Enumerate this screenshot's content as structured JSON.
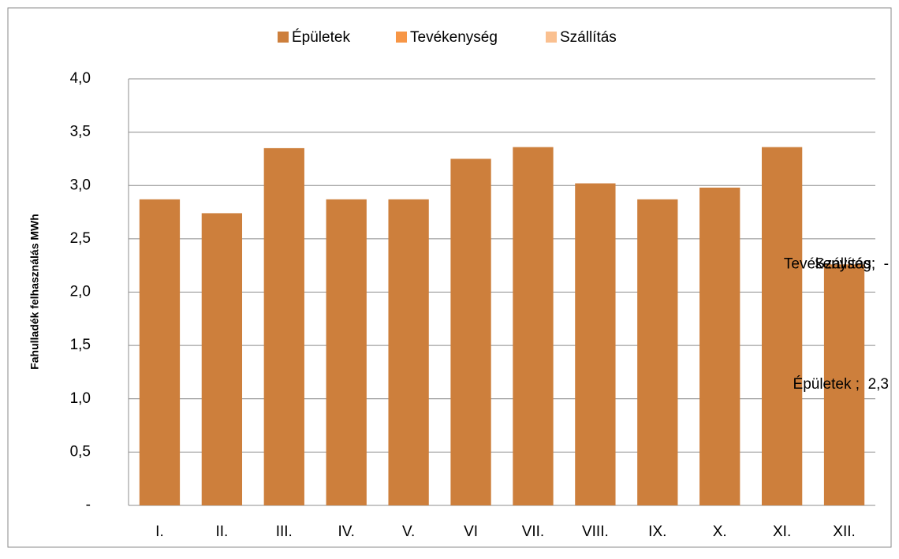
{
  "chart_data": {
    "type": "stacked_bar",
    "y_label": "Fahulladék felhasználás MWh",
    "categories": [
      "I.",
      "II.",
      "III.",
      "IV.",
      "V.",
      "VI",
      "VII.",
      "VIII.",
      "IX.",
      "X.",
      "XI.",
      "XII."
    ],
    "series": [
      {
        "name": "Épületek",
        "color": "#cd7f3c",
        "values": [
          2.87,
          2.74,
          3.35,
          2.87,
          2.87,
          3.25,
          3.36,
          3.02,
          2.87,
          2.98,
          3.36,
          2.26
        ],
        "value_labels": [
          null,
          null,
          null,
          null,
          null,
          null,
          null,
          null,
          null,
          null,
          null,
          "Épületek ;  2,3"
        ]
      },
      {
        "name": "Tevékenység",
        "color": "#f79646",
        "values": [
          0,
          0,
          0,
          0,
          0,
          0,
          0,
          0,
          0,
          0,
          0,
          0
        ],
        "value_labels": [
          null,
          null,
          null,
          null,
          null,
          null,
          null,
          null,
          null,
          null,
          null,
          "Tevékenység;  -"
        ]
      },
      {
        "name": "Szállítás",
        "color": "#fac090",
        "values": [
          0,
          0,
          0,
          0,
          0,
          0,
          0,
          0,
          0,
          0,
          0,
          0
        ],
        "value_labels": [
          null,
          null,
          null,
          null,
          null,
          null,
          null,
          null,
          null,
          null,
          null,
          "Szállítás;  -"
        ]
      }
    ],
    "ylim": [
      0,
      4
    ],
    "yticks": [
      {
        "value": 0,
        "label": "-"
      },
      {
        "value": 0.5,
        "label": "0,5"
      },
      {
        "value": 1,
        "label": "1,0"
      },
      {
        "value": 1.5,
        "label": "1,5"
      },
      {
        "value": 2,
        "label": "2,0"
      },
      {
        "value": 2.5,
        "label": "2,5"
      },
      {
        "value": 3,
        "label": "3,0"
      },
      {
        "value": 3.5,
        "label": "3,5"
      },
      {
        "value": 4,
        "label": "4,0"
      }
    ],
    "grid": true,
    "legend": "top"
  }
}
